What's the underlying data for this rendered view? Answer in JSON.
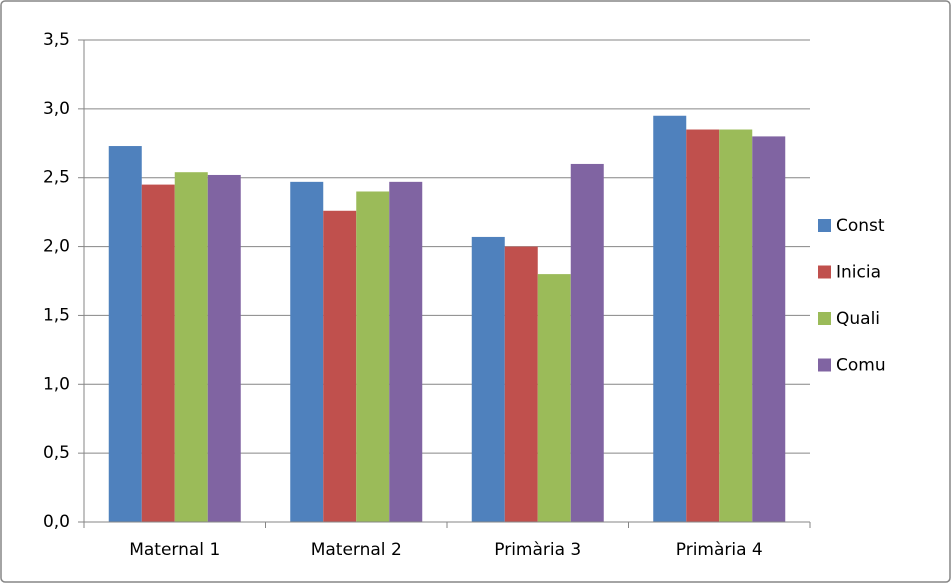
{
  "chart_data": {
    "type": "bar",
    "categories": [
      "Maternal 1",
      "Maternal 2",
      "Primària 3",
      "Primària 4"
    ],
    "series": [
      {
        "name": "Const",
        "color": "#4f81bd",
        "values": [
          2.73,
          2.47,
          2.07,
          2.95
        ]
      },
      {
        "name": "Inicia",
        "color": "#c0504d",
        "values": [
          2.45,
          2.26,
          2.0,
          2.85
        ]
      },
      {
        "name": "Quali",
        "color": "#9bbb59",
        "values": [
          2.54,
          2.4,
          1.8,
          2.85
        ]
      },
      {
        "name": "Comu",
        "color": "#8064a2",
        "values": [
          2.52,
          2.47,
          2.6,
          2.8
        ]
      }
    ],
    "ylim": [
      0,
      3.5
    ],
    "yticks": [
      {
        "value": 0,
        "label": "0,0"
      },
      {
        "value": 0.5,
        "label": "0,5"
      },
      {
        "value": 1,
        "label": "1,0"
      },
      {
        "value": 1.5,
        "label": "1,5"
      },
      {
        "value": 2,
        "label": "2,0"
      },
      {
        "value": 2.5,
        "label": "2,5"
      },
      {
        "value": 3,
        "label": "3,0"
      },
      {
        "value": 3.5,
        "label": "3,5"
      }
    ],
    "grid": true,
    "legend": "right"
  }
}
